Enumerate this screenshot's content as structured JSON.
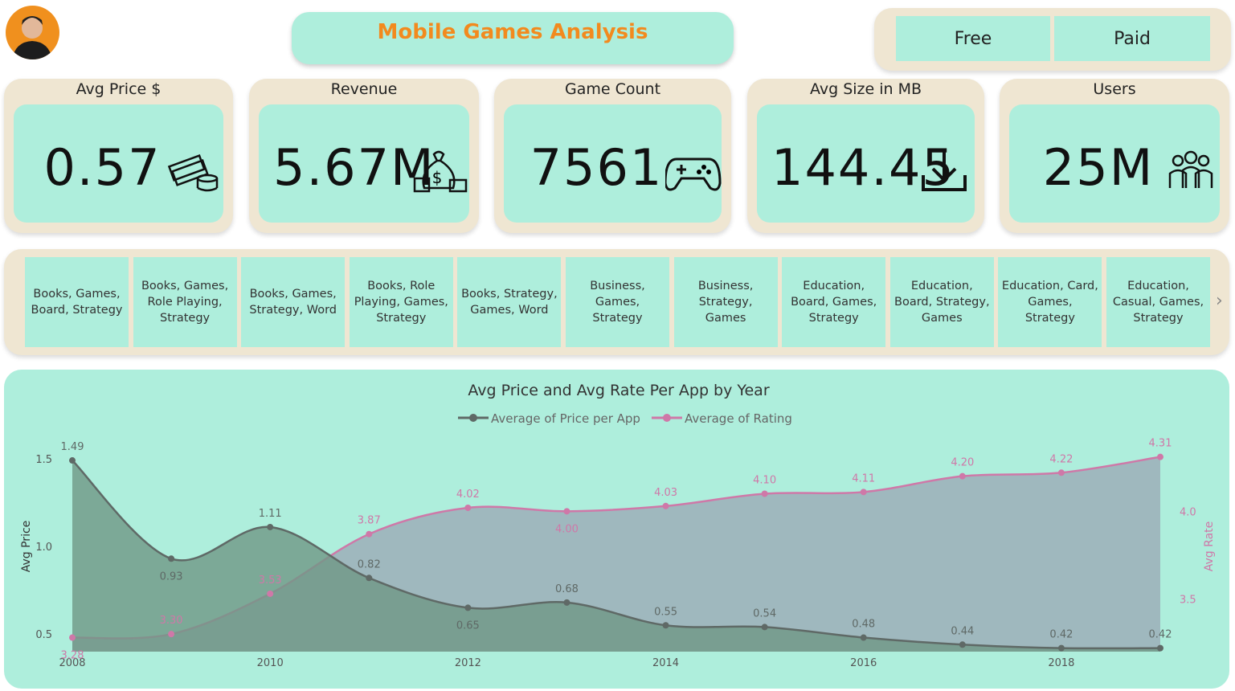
{
  "header": {
    "title": "Mobile Games Analysis",
    "buttons": [
      "Free",
      "Paid"
    ]
  },
  "kpis": [
    {
      "label": "Avg Price $",
      "value": "0.57"
    },
    {
      "label": "Revenue",
      "value": "5.67M"
    },
    {
      "label": "Game Count",
      "value": "7561"
    },
    {
      "label": "Avg Size in MB",
      "value": "144.45"
    },
    {
      "label": "Users",
      "value": "25M"
    }
  ],
  "genres": [
    "Books, Games, Board, Strategy",
    "Books, Games, Role Playing, Strategy",
    "Books, Games, Strategy, Word",
    "Books, Role Playing, Games, Strategy",
    "Books, Strategy, Games, Word",
    "Business, Games, Strategy",
    "Business, Strategy, Games",
    "Education, Board, Games, Strategy",
    "Education, Board, Strategy, Games",
    "Education, Card, Games, Strategy",
    "Education, Casual, Games, Strategy"
  ],
  "chart_data": {
    "type": "area",
    "title": "Avg Price and Avg Rate Per App by Year",
    "x": [
      2008,
      2009,
      2010,
      2011,
      2012,
      2013,
      2014,
      2015,
      2016,
      2017,
      2018,
      2019
    ],
    "xlim": [
      2008,
      2019
    ],
    "xticks": [
      2008,
      2010,
      2012,
      2014,
      2016,
      2018
    ],
    "ylabel": "Avg Price",
    "y2label": "Avg Rate",
    "ylim": [
      0.4,
      1.6
    ],
    "yticks": [
      0.5,
      {
        "value": 1,
        "label": "1.0"
      },
      1.5
    ],
    "y2lim": [
      3.2,
      4.4
    ],
    "y2ticks": [
      3.5,
      {
        "value": 4,
        "label": "4.0"
      }
    ],
    "legend": "top",
    "series": [
      {
        "name": "Average of Price per App",
        "color": "#5f6966",
        "fill": "#6f9786",
        "values": [
          1.49,
          0.93,
          1.11,
          0.82,
          0.65,
          0.68,
          0.55,
          0.54,
          0.48,
          0.44,
          0.42,
          0.42
        ],
        "value_labels": [
          "1.49",
          "0.93",
          "1.11",
          "0.82",
          "0.65",
          "0.68",
          "0.55",
          "0.54",
          "0.48",
          "0.44",
          "0.42",
          "0.42"
        ]
      },
      {
        "name": "Average of Rating",
        "color": "#cf78a8",
        "fill": "#9aa5b4",
        "axis": "y2",
        "values": [
          3.28,
          3.3,
          3.53,
          3.87,
          4.02,
          4,
          4.03,
          4.1,
          4.11,
          4.2,
          4.22,
          4.31
        ],
        "value_labels": [
          "3.28",
          "3.30",
          "3.53",
          "3.87",
          "4.02",
          "4.00",
          "4.03",
          "4.10",
          "4.11",
          "4.20",
          "4.22",
          "4.31"
        ]
      }
    ]
  }
}
